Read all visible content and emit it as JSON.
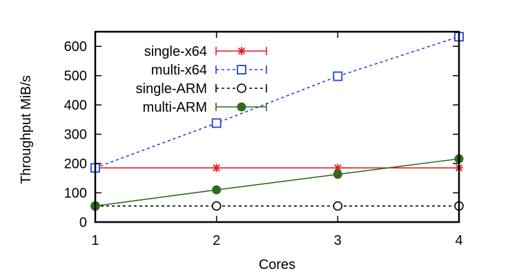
{
  "chart_data": {
    "type": "line",
    "xlabel": "Cores",
    "ylabel": "Throughput MiB/s",
    "x": [
      1,
      2,
      3,
      4
    ],
    "xlim": [
      1,
      4
    ],
    "ylim": [
      0,
      650
    ],
    "xticks": [
      "1",
      "2",
      "3",
      "4"
    ],
    "yticks": [
      0,
      100,
      200,
      300,
      400,
      500,
      600
    ],
    "ytick_labels": [
      "0",
      "100",
      "200",
      "300",
      "400",
      "500",
      "600"
    ],
    "grid": false,
    "legend_position": "top-left",
    "series": [
      {
        "name": "single-x64",
        "values": [
          185,
          185,
          185,
          185
        ],
        "color": "#e41a1c",
        "marker": "star",
        "dash": "solid"
      },
      {
        "name": "multi-x64",
        "values": [
          185,
          338,
          498,
          633
        ],
        "color": "#1f3fd6",
        "marker": "square-open",
        "dash": "dotted"
      },
      {
        "name": "single-ARM",
        "values": [
          55,
          55,
          55,
          55
        ],
        "color": "#000000",
        "marker": "circle-open",
        "dash": "dotted"
      },
      {
        "name": "multi-ARM",
        "values": [
          55,
          110,
          163,
          216
        ],
        "color": "#2e6b1e",
        "marker": "circle-filled",
        "dash": "solid"
      }
    ]
  }
}
